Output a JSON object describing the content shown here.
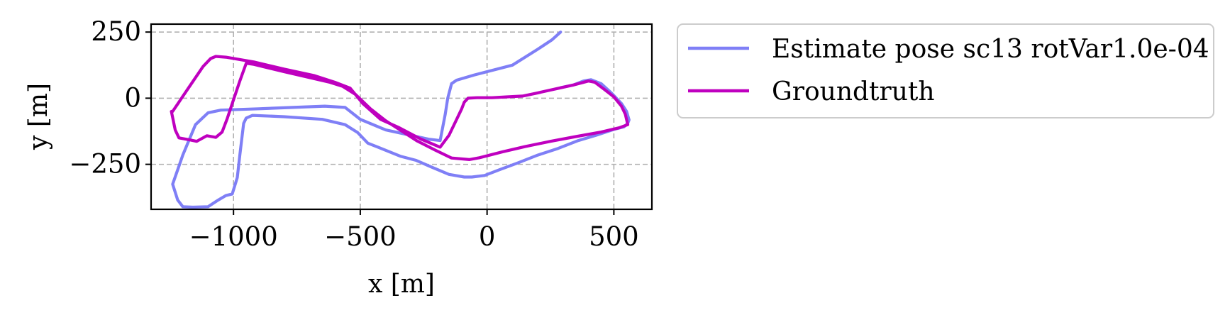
{
  "chart_data": {
    "type": "line",
    "xlabel": "x [m]",
    "ylabel": "y [m]",
    "xlim": [
      -1325,
      650
    ],
    "ylim": [
      -420,
      280
    ],
    "xticks": [
      -1000,
      -500,
      0,
      500
    ],
    "xtick_labels": [
      "−1000",
      "−500",
      "0",
      "500"
    ],
    "yticks": [
      250,
      0,
      -250
    ],
    "ytick_labels": [
      "250",
      "0",
      "−250"
    ],
    "grid": true,
    "legend_position": "outside-right-top",
    "series": [
      {
        "name": "Estimate pose sc13 rotVar1.0e-04",
        "color": "#7f7ff6",
        "points": [
          [
            290,
            250
          ],
          [
            255,
            220
          ],
          [
            200,
            185
          ],
          [
            100,
            125
          ],
          [
            -50,
            88
          ],
          [
            -120,
            68
          ],
          [
            -140,
            55
          ],
          [
            -155,
            0
          ],
          [
            -165,
            -60
          ],
          [
            -185,
            -160
          ],
          [
            -230,
            -155
          ],
          [
            -400,
            -120
          ],
          [
            -500,
            -80
          ],
          [
            -560,
            -35
          ],
          [
            -640,
            -30
          ],
          [
            -900,
            -40
          ],
          [
            -1050,
            -45
          ],
          [
            -1100,
            -55
          ],
          [
            -1150,
            -100
          ],
          [
            -1200,
            -215
          ],
          [
            -1240,
            -325
          ],
          [
            -1220,
            -385
          ],
          [
            -1200,
            -410
          ],
          [
            -1160,
            -412
          ],
          [
            -1100,
            -410
          ],
          [
            -1060,
            -385
          ],
          [
            -1030,
            -368
          ],
          [
            -1005,
            -362
          ],
          [
            -985,
            -300
          ],
          [
            -975,
            -215
          ],
          [
            -960,
            -95
          ],
          [
            -950,
            -75
          ],
          [
            -925,
            -65
          ],
          [
            -800,
            -70
          ],
          [
            -650,
            -80
          ],
          [
            -560,
            -100
          ],
          [
            -510,
            -130
          ],
          [
            -470,
            -170
          ],
          [
            -430,
            -185
          ],
          [
            -340,
            -220
          ],
          [
            -280,
            -235
          ],
          [
            -220,
            -260
          ],
          [
            -150,
            -288
          ],
          [
            -90,
            -298
          ],
          [
            -60,
            -298
          ],
          [
            -10,
            -292
          ],
          [
            50,
            -270
          ],
          [
            120,
            -245
          ],
          [
            200,
            -215
          ],
          [
            280,
            -190
          ],
          [
            360,
            -160
          ],
          [
            430,
            -140
          ],
          [
            500,
            -118
          ],
          [
            540,
            -108
          ],
          [
            555,
            -95
          ],
          [
            560,
            -82
          ],
          [
            550,
            -50
          ],
          [
            530,
            -20
          ],
          [
            490,
            20
          ],
          [
            450,
            55
          ],
          [
            410,
            70
          ],
          [
            380,
            65
          ],
          [
            340,
            50
          ],
          [
            290,
            40
          ]
        ]
      },
      {
        "name": "Groundtruth",
        "color": "#bf00bf",
        "points": [
          [
            -1240,
            -50
          ],
          [
            -1180,
            35
          ],
          [
            -1120,
            120
          ],
          [
            -1090,
            150
          ],
          [
            -1070,
            158
          ],
          [
            -1030,
            155
          ],
          [
            -920,
            137
          ],
          [
            -800,
            110
          ],
          [
            -680,
            85
          ],
          [
            -600,
            60
          ],
          [
            -540,
            38
          ],
          [
            -490,
            -20
          ],
          [
            -420,
            -80
          ],
          [
            -350,
            -110
          ],
          [
            -260,
            -155
          ],
          [
            -185,
            -185
          ],
          [
            -150,
            -140
          ],
          [
            -100,
            -40
          ],
          [
            -90,
            -15
          ],
          [
            -75,
            0
          ],
          [
            -40,
            2
          ],
          [
            20,
            2
          ],
          [
            80,
            5
          ],
          [
            140,
            8
          ],
          [
            200,
            20
          ],
          [
            270,
            35
          ],
          [
            340,
            50
          ],
          [
            400,
            65
          ],
          [
            425,
            60
          ],
          [
            460,
            35
          ],
          [
            500,
            5
          ],
          [
            530,
            -30
          ],
          [
            545,
            -60
          ],
          [
            555,
            -100
          ],
          [
            520,
            -112
          ],
          [
            450,
            -128
          ],
          [
            350,
            -145
          ],
          [
            250,
            -163
          ],
          [
            150,
            -183
          ],
          [
            60,
            -203
          ],
          [
            -30,
            -225
          ],
          [
            -70,
            -232
          ],
          [
            -140,
            -226
          ],
          [
            -205,
            -196
          ],
          [
            -275,
            -162
          ],
          [
            -335,
            -125
          ],
          [
            -400,
            -85
          ],
          [
            -460,
            -40
          ],
          [
            -520,
            15
          ],
          [
            -570,
            45
          ],
          [
            -620,
            60
          ],
          [
            -700,
            78
          ],
          [
            -800,
            100
          ],
          [
            -920,
            128
          ],
          [
            -950,
            132
          ],
          [
            -975,
            65
          ],
          [
            -1005,
            -20
          ],
          [
            -1025,
            -78
          ],
          [
            -1045,
            -128
          ],
          [
            -1070,
            -148
          ],
          [
            -1105,
            -142
          ],
          [
            -1145,
            -163
          ],
          [
            -1170,
            -158
          ],
          [
            -1215,
            -150
          ],
          [
            -1230,
            -120
          ],
          [
            -1245,
            -50
          ]
        ]
      }
    ]
  }
}
